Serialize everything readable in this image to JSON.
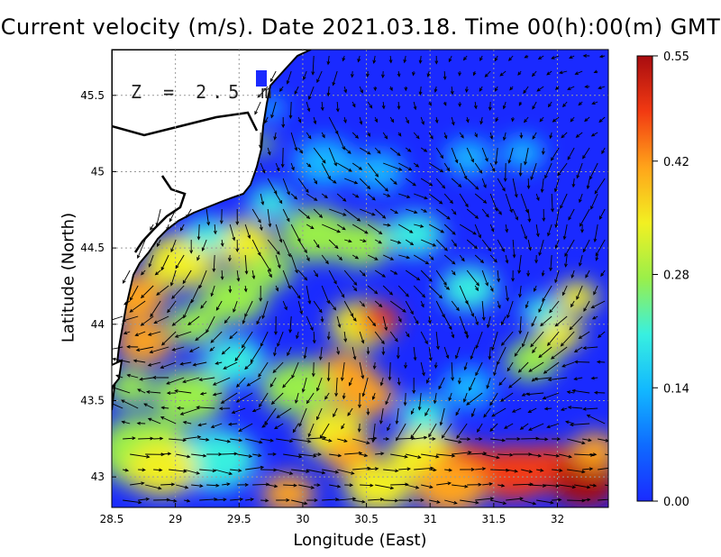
{
  "title": "Current velocity (m/s). Date 2021.03.18. Time 00(h):00(m) GMT",
  "depth_label": "Z = 2.5 m",
  "colors": {
    "scale": [
      "#1a2aff",
      "#0f6bff",
      "#12b8ff",
      "#38f0e0",
      "#9aef4a",
      "#f2f022",
      "#ffa41a",
      "#f23a12",
      "#a80c10"
    ],
    "land": "#ffffff",
    "coast": "#000000",
    "arrow": "#000000",
    "grid": "#9a9a9a"
  },
  "chart_data": {
    "type": "heatmap",
    "subtype": "current-velocity-vector-map",
    "xlabel": "Longitude (East)",
    "ylabel": "Latitude (North)",
    "xlim": [
      28.5,
      32.4
    ],
    "ylim": [
      42.8,
      45.8
    ],
    "x_ticks": [
      "28.5",
      "29",
      "29.5",
      "30",
      "30.5",
      "31",
      "31.5",
      "32"
    ],
    "x_tick_values": [
      28.5,
      29,
      29.5,
      30,
      30.5,
      31,
      31.5,
      32
    ],
    "y_ticks": [
      "43",
      "43.5",
      "44",
      "44.5",
      "45",
      "45.5"
    ],
    "y_tick_values": [
      43,
      43.5,
      44,
      44.5,
      45,
      45.5
    ],
    "grid": true,
    "colorbar": {
      "min": 0.0,
      "max": 0.55,
      "units": "m/s",
      "ticks": [
        "0.00",
        "0.14",
        "0.28",
        "0.42",
        "0.55"
      ],
      "tick_values": [
        0.0,
        0.14,
        0.28,
        0.42,
        0.55
      ]
    }
  }
}
